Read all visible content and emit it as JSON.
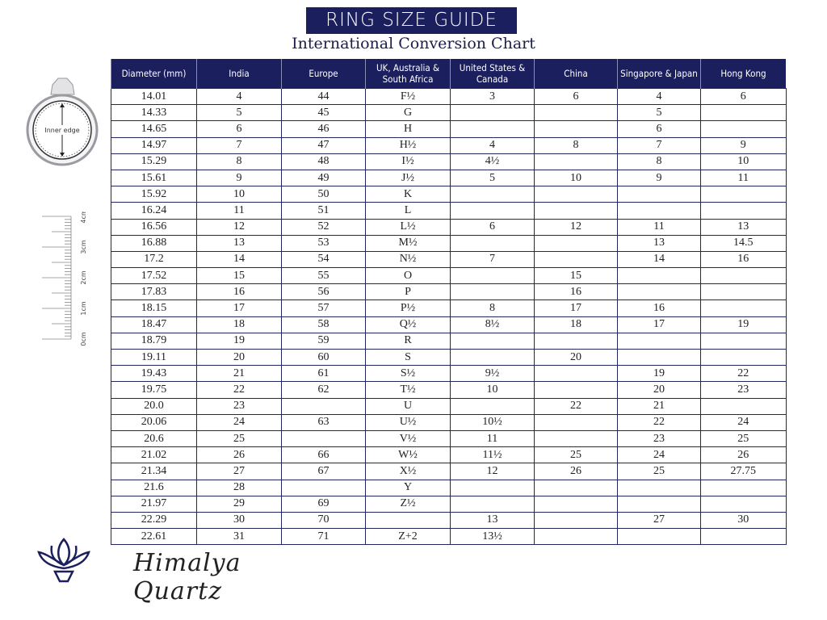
{
  "header": {
    "title": "RING SIZE GUIDE",
    "subtitle": "International Conversion Chart"
  },
  "illustration": {
    "ring_label": "Inner edge",
    "ruler_labels": [
      "0cm",
      "1cm",
      "2cm",
      "3cm",
      "4cm"
    ]
  },
  "brand": {
    "name": "Himalya Quartz",
    "accent": "#1b1f5e"
  },
  "table": {
    "columns": [
      "Diameter (mm)",
      "India",
      "Europe",
      "UK, Australia & South Africa",
      "United States & Canada",
      "China",
      "Singapore & Japan",
      "Hong Kong"
    ],
    "rows": [
      [
        "14.01",
        "4",
        "44",
        "F½",
        "3",
        "6",
        "4",
        "6"
      ],
      [
        "14.33",
        "5",
        "45",
        "G",
        "",
        "",
        "5",
        ""
      ],
      [
        "14.65",
        "6",
        "46",
        "H",
        "",
        "",
        "6",
        ""
      ],
      [
        "14.97",
        "7",
        "47",
        "H½",
        "4",
        "8",
        "7",
        "9"
      ],
      [
        "15.29",
        "8",
        "48",
        "I½",
        "4½",
        "",
        "8",
        "10"
      ],
      [
        "15.61",
        "9",
        "49",
        "J½",
        "5",
        "10",
        "9",
        "11"
      ],
      [
        "15.92",
        "10",
        "50",
        "K",
        "",
        "",
        "",
        ""
      ],
      [
        "16.24",
        "11",
        "51",
        "L",
        "",
        "",
        "",
        ""
      ],
      [
        "16.56",
        "12",
        "52",
        "L½",
        "6",
        "12",
        "11",
        "13"
      ],
      [
        "16.88",
        "13",
        "53",
        "M½",
        "",
        "",
        "13",
        "14.5"
      ],
      [
        "17.2",
        "14",
        "54",
        "N½",
        "7",
        "",
        "14",
        "16"
      ],
      [
        "17.52",
        "15",
        "55",
        "O",
        "",
        "15",
        "",
        ""
      ],
      [
        "17.83",
        "16",
        "56",
        "P",
        "",
        "16",
        "",
        ""
      ],
      [
        "18.15",
        "17",
        "57",
        "P½",
        "8",
        "17",
        "16",
        ""
      ],
      [
        "18.47",
        "18",
        "58",
        "Q½",
        "8½",
        "18",
        "17",
        "19"
      ],
      [
        "18.79",
        "19",
        "59",
        "R",
        "",
        "",
        "",
        ""
      ],
      [
        "19.11",
        "20",
        "60",
        "S",
        "",
        "20",
        "",
        ""
      ],
      [
        "19.43",
        "21",
        "61",
        "S½",
        "9½",
        "",
        "19",
        "22"
      ],
      [
        "19.75",
        "22",
        "62",
        "T½",
        "10",
        "",
        "20",
        "23"
      ],
      [
        "20.0",
        "23",
        "",
        "U",
        "",
        "22",
        "21",
        ""
      ],
      [
        "20.06",
        "24",
        "63",
        "U½",
        "10½",
        "",
        "22",
        "24"
      ],
      [
        "20.6",
        "25",
        "",
        "V½",
        "11",
        "",
        "23",
        "25"
      ],
      [
        "21.02",
        "26",
        "66",
        "W½",
        "11½",
        "25",
        "24",
        "26"
      ],
      [
        "21.34",
        "27",
        "67",
        "X½",
        "12",
        "26",
        "25",
        "27.75"
      ],
      [
        "21.6",
        "28",
        "",
        "Y",
        "",
        "",
        "",
        ""
      ],
      [
        "21.97",
        "29",
        "69",
        "Z½",
        "",
        "",
        "",
        ""
      ],
      [
        "22.29",
        "30",
        "70",
        "",
        "13",
        "",
        "27",
        "30"
      ],
      [
        "22.61",
        "31",
        "71",
        "Z+2",
        "13½",
        "",
        "",
        ""
      ]
    ]
  }
}
